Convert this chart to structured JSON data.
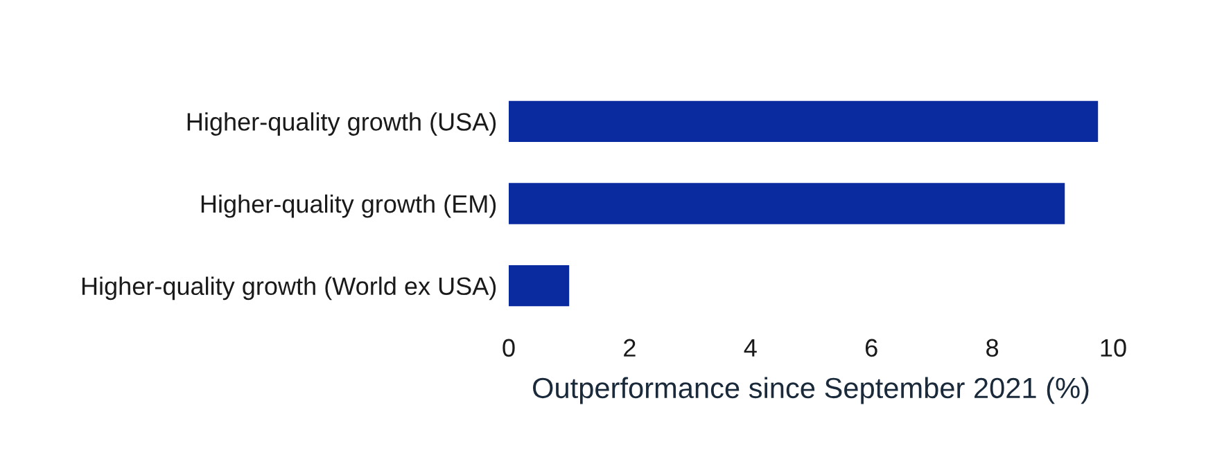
{
  "chart_data": {
    "type": "bar",
    "orientation": "horizontal",
    "xlabel": "Outperformance since September 2021 (%)",
    "categories": [
      "Higher-quality growth (USA)",
      "Higher-quality growth (EM)",
      "Higher-quality growth (World ex USA)"
    ],
    "values": [
      9.75,
      9.2,
      1.0
    ],
    "color": "#0a2a9f",
    "xlim": [
      0,
      10
    ],
    "xticks": [
      0,
      2,
      4,
      6,
      8,
      10
    ],
    "grid": false,
    "legend": false
  }
}
